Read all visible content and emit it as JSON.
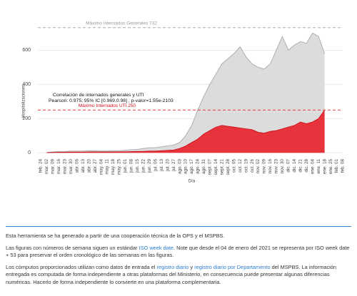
{
  "chart_data": {
    "type": "area",
    "y_label": "Hospitalizaciones",
    "x_label": "Día",
    "annotations": [
      "Correlación de internados generales y UTI",
      "Pearson: 0.975; 95% IC [0.969,0.98] ; p-valor=1.55e-2103"
    ],
    "reference_lines": [
      {
        "value": 732,
        "label": "Máximo Internados Generales 732",
        "color": "#aaaaaa"
      },
      {
        "value": 250,
        "label": "Máximo Internados UTI 250",
        "color": "#e8323c"
      }
    ],
    "categories": [
      "feb. 24",
      "mar. 02",
      "mar. 09",
      "mar. 16",
      "mar. 23",
      "mar. 30",
      "abr. 06",
      "abr. 13",
      "abr. 20",
      "abr. 27",
      "may. 04",
      "may. 11",
      "may. 18",
      "may. 25",
      "jun. 01",
      "jun. 08",
      "jun. 15",
      "jun. 22",
      "jun. 29",
      "jul. 06",
      "jul. 13",
      "jul. 20",
      "jul. 27",
      "ago. 03",
      "ago. 10",
      "ago. 17",
      "ago. 24",
      "ago. 31",
      "sept. 07",
      "sept. 14",
      "sept. 21",
      "sept. 28",
      "oct. 05",
      "oct. 12",
      "oct. 19",
      "oct. 26",
      "nov. 02",
      "nov. 09",
      "nov. 16",
      "nov. 23",
      "nov. 30",
      "dic. 07",
      "dic. 14",
      "dic. 21",
      "dic. 28",
      "ene. 04",
      "ene. 11",
      "ene. 18",
      "ene. 25",
      "feb. 01",
      "feb. 08"
    ],
    "series": [
      {
        "name": "Internados Generales",
        "color": "#dcdcdc",
        "values": [
          null,
          2,
          5,
          8,
          8,
          10,
          10,
          10,
          12,
          12,
          10,
          10,
          12,
          12,
          15,
          18,
          20,
          25,
          30,
          30,
          35,
          40,
          45,
          60,
          100,
          160,
          250,
          330,
          400,
          460,
          520,
          550,
          580,
          620,
          560,
          520,
          500,
          490,
          520,
          600,
          680,
          600,
          630,
          650,
          640,
          700,
          680,
          580,
          null,
          null,
          null
        ]
      },
      {
        "name": "Internados UTI",
        "color": "#e8323c",
        "values": [
          null,
          1,
          2,
          3,
          3,
          4,
          4,
          4,
          5,
          5,
          5,
          5,
          5,
          6,
          6,
          7,
          8,
          8,
          10,
          10,
          12,
          14,
          16,
          25,
          40,
          60,
          80,
          110,
          130,
          150,
          160,
          155,
          150,
          145,
          140,
          135,
          120,
          115,
          125,
          130,
          140,
          150,
          160,
          180,
          170,
          180,
          200,
          250,
          null,
          null,
          null
        ]
      }
    ],
    "ylim": [
      -20,
      760
    ],
    "yticks": [
      0,
      200,
      400,
      600
    ],
    "grid": true
  },
  "footer": {
    "paragraphs": [
      [
        "Esta herramienta se ha generado a partir de una cooperación técnica de la OPS y el MSPBS."
      ],
      [
        "Las figuras con números de semana siguen un estándar ",
        {
          "link": "ISO week date"
        },
        ". Note que desde el 04 de enero del 2021 se representa por ISO week date + 53 para preservar el orden cronológico de las semanas en las figuras."
      ],
      [
        "Los cómputos proporcionados utilizan como datos de entrada el ",
        {
          "link": "registro diario"
        },
        " y ",
        {
          "link": "registro diario por Departamento"
        },
        " del MSPBS. La información entregada es computada de forma independiente a otras plataformas del Ministerio, en consecuencia puede presentar algunas diferencias numéricas. Hacerlo de forma independiente lo convierte en una plataforma complementaria."
      ]
    ]
  }
}
